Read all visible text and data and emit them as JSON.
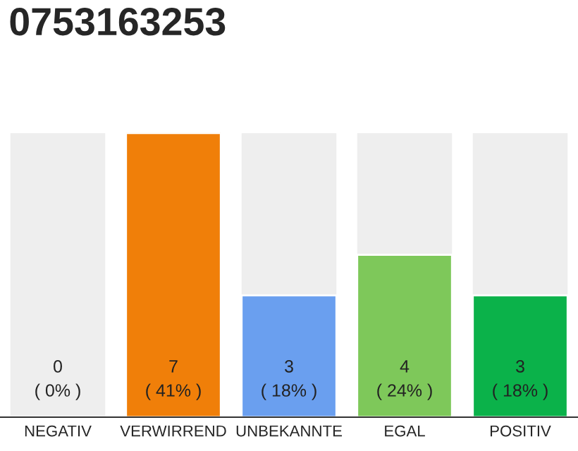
{
  "chart_data": {
    "type": "bar",
    "title": "0753163253",
    "categories": [
      "NEGATIV",
      "VERWIRREND",
      "UNBEKANNTE",
      "EGAL",
      "POSITIV"
    ],
    "values": [
      0,
      7,
      3,
      4,
      3
    ],
    "colors": [
      null,
      "#f07f09",
      "#6a9fef",
      "#7ec85a",
      "#0bb24a"
    ],
    "value_labels": [
      "0\n( 0% )",
      "7\n( 41% )",
      "3\n( 18% )",
      "4\n( 24% )",
      "3\n( 18% )"
    ],
    "grid": false,
    "legend": false
  }
}
